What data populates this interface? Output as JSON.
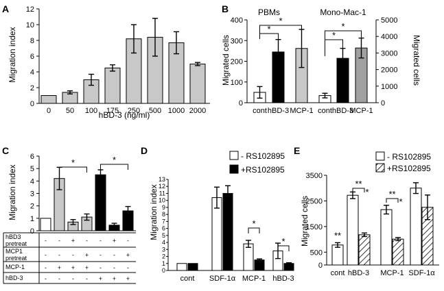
{
  "chart_data": [
    {
      "id": "A",
      "type": "bar",
      "panel_label": "A",
      "categories": [
        "0",
        "50",
        "100",
        "175",
        "250",
        "500",
        "1000",
        "2000"
      ],
      "values": [
        1.0,
        1.4,
        3.0,
        4.5,
        8.2,
        8.4,
        7.7,
        5.0
      ],
      "errors": [
        0.0,
        0.2,
        0.7,
        0.4,
        1.8,
        2.4,
        1.4,
        0.2
      ],
      "color": "#c8c8c8",
      "xlabel": "hBD-3 (ng/ml)",
      "ylabel": "Migration index",
      "ylim": [
        0,
        12
      ],
      "yticks": [
        "0",
        "2",
        "4",
        "6",
        "8",
        "10",
        "12"
      ]
    },
    {
      "id": "B",
      "type": "bar",
      "panel_label": "B",
      "groups": [
        {
          "name": "PBMs",
          "axis": "left",
          "categories": [
            "cont",
            "hBD-3",
            "MCP-1"
          ],
          "values": [
            50,
            245,
            262
          ],
          "errors": [
            28,
            60,
            92
          ],
          "colors": [
            "#ffffff",
            "#000000",
            "#c8c8c8"
          ]
        },
        {
          "name": "Mono-Mac-1",
          "axis": "right",
          "categories": [
            "cont",
            "hBD-3",
            "MCP-1"
          ],
          "values": [
            430,
            2680,
            3300
          ],
          "errors": [
            140,
            600,
            600
          ],
          "colors": [
            "#ffffff",
            "#000000",
            "#a0a0a0"
          ]
        }
      ],
      "ylabel_left": "Migrated cells",
      "ylim_left": [
        0,
        400
      ],
      "yticks_left": [
        "0",
        "100",
        "200",
        "300",
        "400"
      ],
      "ylabel_right": "Migrated cells",
      "ylim_right": [
        0,
        5000
      ],
      "yticks_right": [
        "0",
        "1000",
        "2000",
        "3000",
        "4000",
        "5000"
      ],
      "significance": "*"
    },
    {
      "id": "C",
      "type": "bar",
      "panel_label": "C",
      "values": [
        1.0,
        4.2,
        0.7,
        1.1,
        4.5,
        0.45,
        1.6
      ],
      "errors": [
        0.0,
        0.9,
        0.2,
        0.25,
        0.4,
        0.15,
        0.35
      ],
      "colors": [
        "#ffffff",
        "#c8c8c8",
        "#c8c8c8",
        "#c8c8c8",
        "#000000",
        "#000000",
        "#000000"
      ],
      "ylabel": "Migration index",
      "ylim": [
        0,
        6
      ],
      "yticks": [
        "0",
        "1",
        "2",
        "3",
        "4",
        "5",
        "6"
      ],
      "table_rows": [
        {
          "label": "hBD3 pretreat",
          "cells": [
            "-",
            "-",
            "+",
            "-",
            "-",
            "+",
            "-"
          ]
        },
        {
          "label": "MCP1 pretreat",
          "cells": [
            "-",
            "-",
            "-",
            "+",
            "-",
            "-",
            "+"
          ]
        },
        {
          "label": "MCP-1",
          "cells": [
            "-",
            "+",
            "+",
            "+",
            "-",
            "-",
            "-"
          ]
        },
        {
          "label": "hBD-3",
          "cells": [
            "-",
            "-",
            "-",
            "-",
            "+",
            "+",
            "+"
          ]
        }
      ],
      "significance": "*"
    },
    {
      "id": "D",
      "type": "bar",
      "panel_label": "D",
      "categories": [
        "cont",
        "SDF-1α",
        "MCP-1",
        "hBD-3"
      ],
      "series": [
        {
          "name": "- RS102895",
          "color": "#ffffff",
          "values": [
            1.0,
            10.4,
            3.8,
            2.8
          ],
          "errors": [
            0.0,
            1.5,
            0.5,
            1.1
          ]
        },
        {
          "name": "+RS102895",
          "color": "#000000",
          "values": [
            1.0,
            11.0,
            1.5,
            1.0
          ],
          "errors": [
            0.0,
            1.1,
            0.15,
            0.1
          ]
        }
      ],
      "ylabel": "Migration index",
      "ylim": [
        0,
        13
      ],
      "yticks": [
        "0",
        "1",
        "2",
        "3",
        "4",
        "5",
        "6",
        "7",
        "8",
        "9",
        "10",
        "11",
        "12",
        "13"
      ],
      "significance": "*"
    },
    {
      "id": "E",
      "type": "bar",
      "panel_label": "E",
      "categories": [
        "cont",
        "hBD-3",
        "MCP-1",
        "SDF-1α"
      ],
      "series": [
        {
          "name": "- RS102895",
          "fill": "white",
          "values": [
            780,
            2720,
            2160,
            3000
          ],
          "errors": [
            90,
            130,
            170,
            210
          ]
        },
        {
          "name": "+RS102895",
          "fill": "hatch",
          "values": [
            null,
            1180,
            1010,
            2250
          ],
          "errors": [
            null,
            70,
            60,
            480
          ]
        }
      ],
      "ylabel": "Migrated cells",
      "ylim": [
        0,
        3500
      ],
      "yticks": [
        "0",
        "500",
        "1500",
        "2500",
        "3500"
      ],
      "ytick_values": [
        0,
        500,
        1500,
        2500,
        3500
      ],
      "significance": [
        "**",
        "*"
      ]
    }
  ]
}
